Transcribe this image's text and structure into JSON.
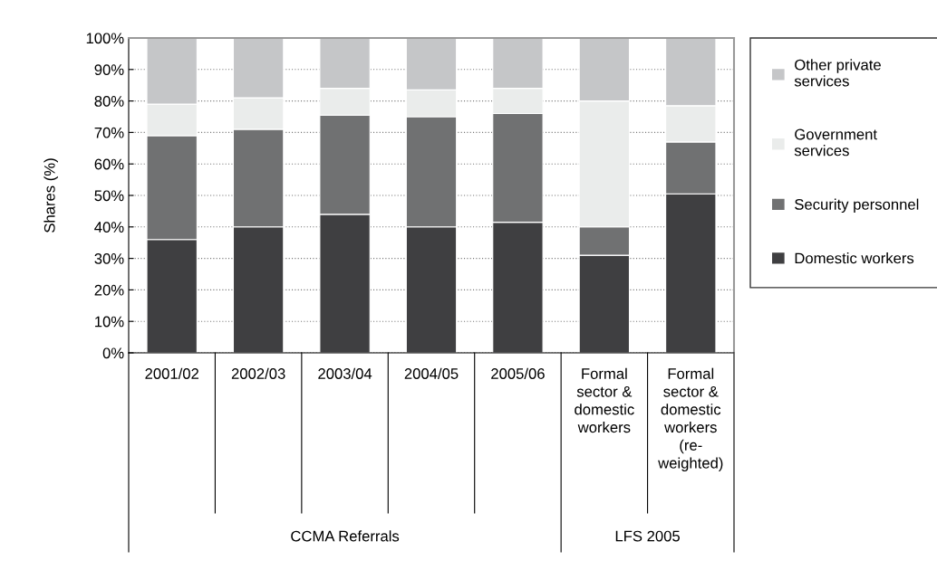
{
  "chart_data": {
    "type": "bar",
    "stacked": true,
    "ylabel": "Shares (%)",
    "categories": [
      "2001/02",
      "2002/03",
      "2003/04",
      "2004/05",
      "2005/06",
      "Formal\nsector &\ndomestic\nworkers",
      "Formal\nsector &\ndomestic\nworkers\n(re-\nweighted)"
    ],
    "series": [
      {
        "name": "Domestic workers",
        "color": "#3f3f41",
        "values": [
          36,
          40,
          44,
          40,
          41.5,
          31,
          50.5
        ]
      },
      {
        "name": "Security personnel",
        "color": "#707172",
        "values": [
          33,
          31,
          31.5,
          35,
          34.5,
          9,
          16.5
        ]
      },
      {
        "name": "Government\nservices",
        "color": "#eaeceb",
        "values": [
          10,
          10,
          8.5,
          8.5,
          8,
          40,
          11.5
        ]
      },
      {
        "name": "Other private\nservices",
        "color": "#c5c6c8",
        "values": [
          21,
          19,
          16,
          16.5,
          16,
          20,
          21.5
        ]
      }
    ],
    "ylim": [
      0,
      100
    ],
    "yticks": [
      {
        "value": 0,
        "label": "0%"
      },
      {
        "value": 10,
        "label": "10%"
      },
      {
        "value": 20,
        "label": "20%"
      },
      {
        "value": 30,
        "label": "30%"
      },
      {
        "value": 40,
        "label": "40%"
      },
      {
        "value": 50,
        "label": "50%"
      },
      {
        "value": 60,
        "label": "60%"
      },
      {
        "value": 70,
        "label": "70%"
      },
      {
        "value": 80,
        "label": "80%"
      },
      {
        "value": 90,
        "label": "90%"
      },
      {
        "value": 100,
        "label": "100%"
      }
    ],
    "annotations": [
      "CCMA Referrals",
      "LFS 2005"
    ],
    "grid": "y",
    "legend": "right"
  }
}
